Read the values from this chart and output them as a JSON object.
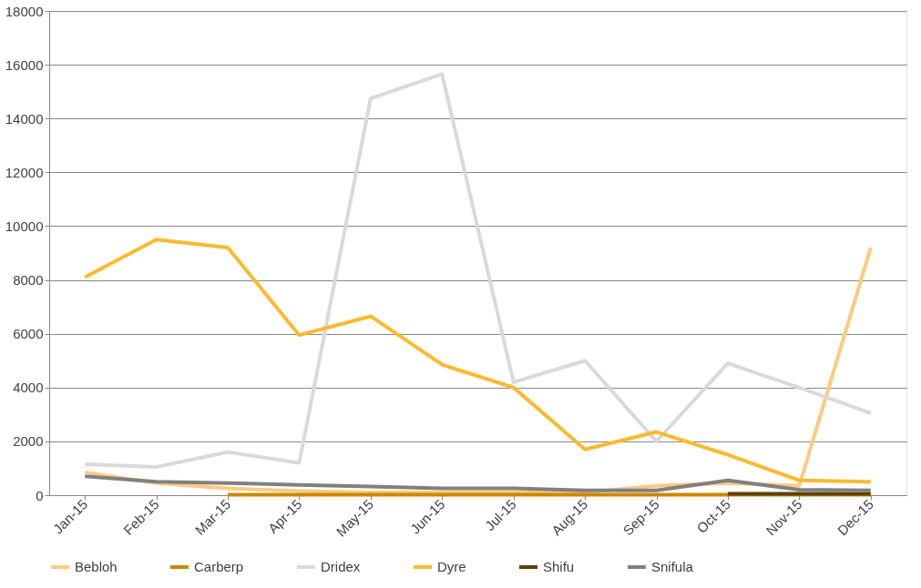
{
  "chart_data": {
    "type": "line",
    "categories": [
      "Jan-15",
      "Feb-15",
      "Mar-15",
      "Apr-15",
      "May-15",
      "Jun-15",
      "Jul-15",
      "Aug-15",
      "Sep-15",
      "Oct-15",
      "Nov-15",
      "Dec-15"
    ],
    "series": [
      {
        "name": "Bebloh",
        "color": "#fdca7d",
        "values": [
          850,
          450,
          250,
          150,
          100,
          100,
          100,
          100,
          350,
          450,
          350,
          9200
        ]
      },
      {
        "name": "Carberp",
        "color": "#cc8800",
        "values": [
          null,
          null,
          20,
          20,
          20,
          20,
          20,
          20,
          20,
          20,
          20,
          20
        ]
      },
      {
        "name": "Dridex",
        "color": "#d9d9d9",
        "values": [
          1150,
          1050,
          1600,
          1200,
          14750,
          15650,
          4200,
          5000,
          2000,
          4900,
          4000,
          3050
        ]
      },
      {
        "name": "Dyre",
        "color": "#fdb92e",
        "values": [
          8100,
          9500,
          9200,
          5950,
          6650,
          4850,
          4000,
          1700,
          2350,
          1500,
          550,
          500
        ]
      },
      {
        "name": "Shifu",
        "color": "#5c4006",
        "values": [
          null,
          null,
          null,
          null,
          null,
          null,
          null,
          null,
          null,
          50,
          50,
          50
        ]
      },
      {
        "name": "Snifula",
        "color": "#808080",
        "values": [
          700,
          500,
          450,
          380,
          320,
          250,
          250,
          180,
          180,
          550,
          200,
          180
        ]
      }
    ],
    "ylim": [
      0,
      18000
    ],
    "yticks": [
      0,
      2000,
      4000,
      6000,
      8000,
      10000,
      12000,
      14000,
      16000,
      18000
    ],
    "grid": "y",
    "legend": "bottom",
    "marker": "none",
    "line_style": "solid"
  }
}
